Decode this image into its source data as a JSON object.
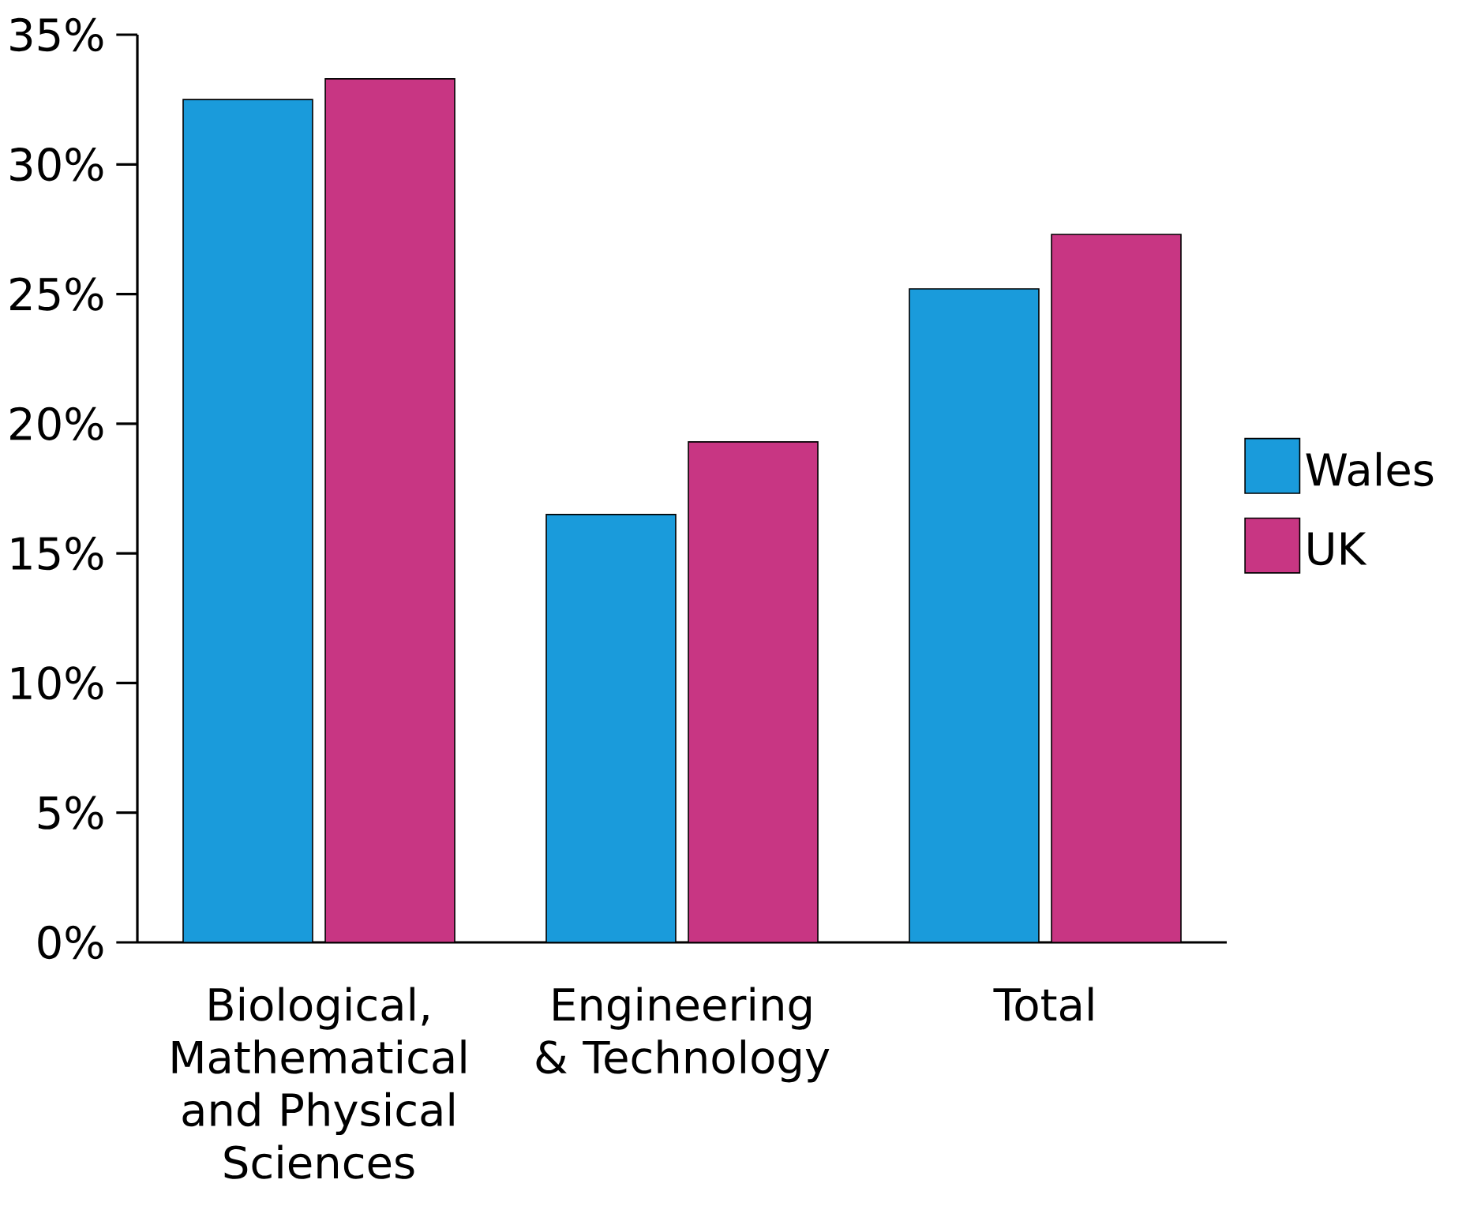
{
  "chart_data": {
    "type": "bar",
    "categories": [
      "Biological, Mathematical and Physical Sciences",
      "Engineering & Technology",
      "Total"
    ],
    "series": [
      {
        "name": "Wales",
        "color": "#1a9bdb",
        "values": [
          32.5,
          16.5,
          25.2
        ]
      },
      {
        "name": "UK",
        "color": "#c83683",
        "values": [
          33.3,
          19.3,
          27.3
        ]
      }
    ],
    "ylim": [
      0,
      35
    ],
    "yticks": [
      {
        "value": 0,
        "label": "0%"
      },
      {
        "value": 5,
        "label": "5%"
      },
      {
        "value": 10,
        "label": "10%"
      },
      {
        "value": 15,
        "label": "15%"
      },
      {
        "value": 20,
        "label": "20%"
      },
      {
        "value": 25,
        "label": "25%"
      },
      {
        "value": 30,
        "label": "30%"
      },
      {
        "value": 35,
        "label": "35%"
      }
    ],
    "grid": false,
    "legend": "right"
  }
}
